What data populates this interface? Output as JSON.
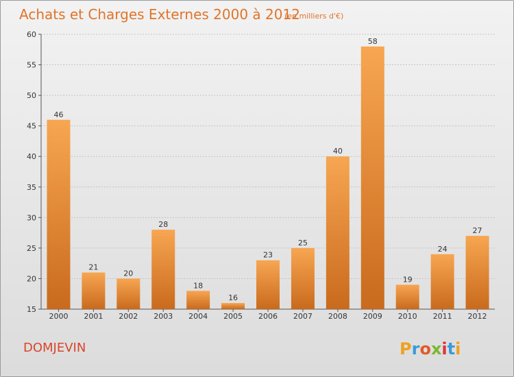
{
  "chart_data": {
    "type": "bar",
    "title": "Achats et Charges Externes 2000 à 2012",
    "subtitle": "(en milliers d'€)",
    "categories": [
      "2000",
      "2001",
      "2002",
      "2003",
      "2004",
      "2005",
      "2006",
      "2007",
      "2008",
      "2009",
      "2010",
      "2011",
      "2012"
    ],
    "values": [
      46,
      21,
      20,
      28,
      18,
      16,
      23,
      25,
      40,
      58,
      19,
      24,
      27
    ],
    "ylim": [
      15,
      60
    ],
    "yticks": [
      15,
      20,
      25,
      30,
      35,
      40,
      45,
      50,
      55,
      60
    ],
    "grid": true,
    "bar_color": "#e8822e",
    "bar_color_top": "#f7a652",
    "bar_color_bottom": "#c96a1c"
  },
  "location": "DOMJEVIN",
  "brand": {
    "letters": [
      "P",
      "r",
      "o",
      "x",
      "i",
      "t",
      "i"
    ],
    "colors": [
      "#f0a020",
      "#3a9ad9",
      "#e05a2a",
      "#7ab82e",
      "#e0333a",
      "#3a9ad9",
      "#f0a020"
    ]
  }
}
